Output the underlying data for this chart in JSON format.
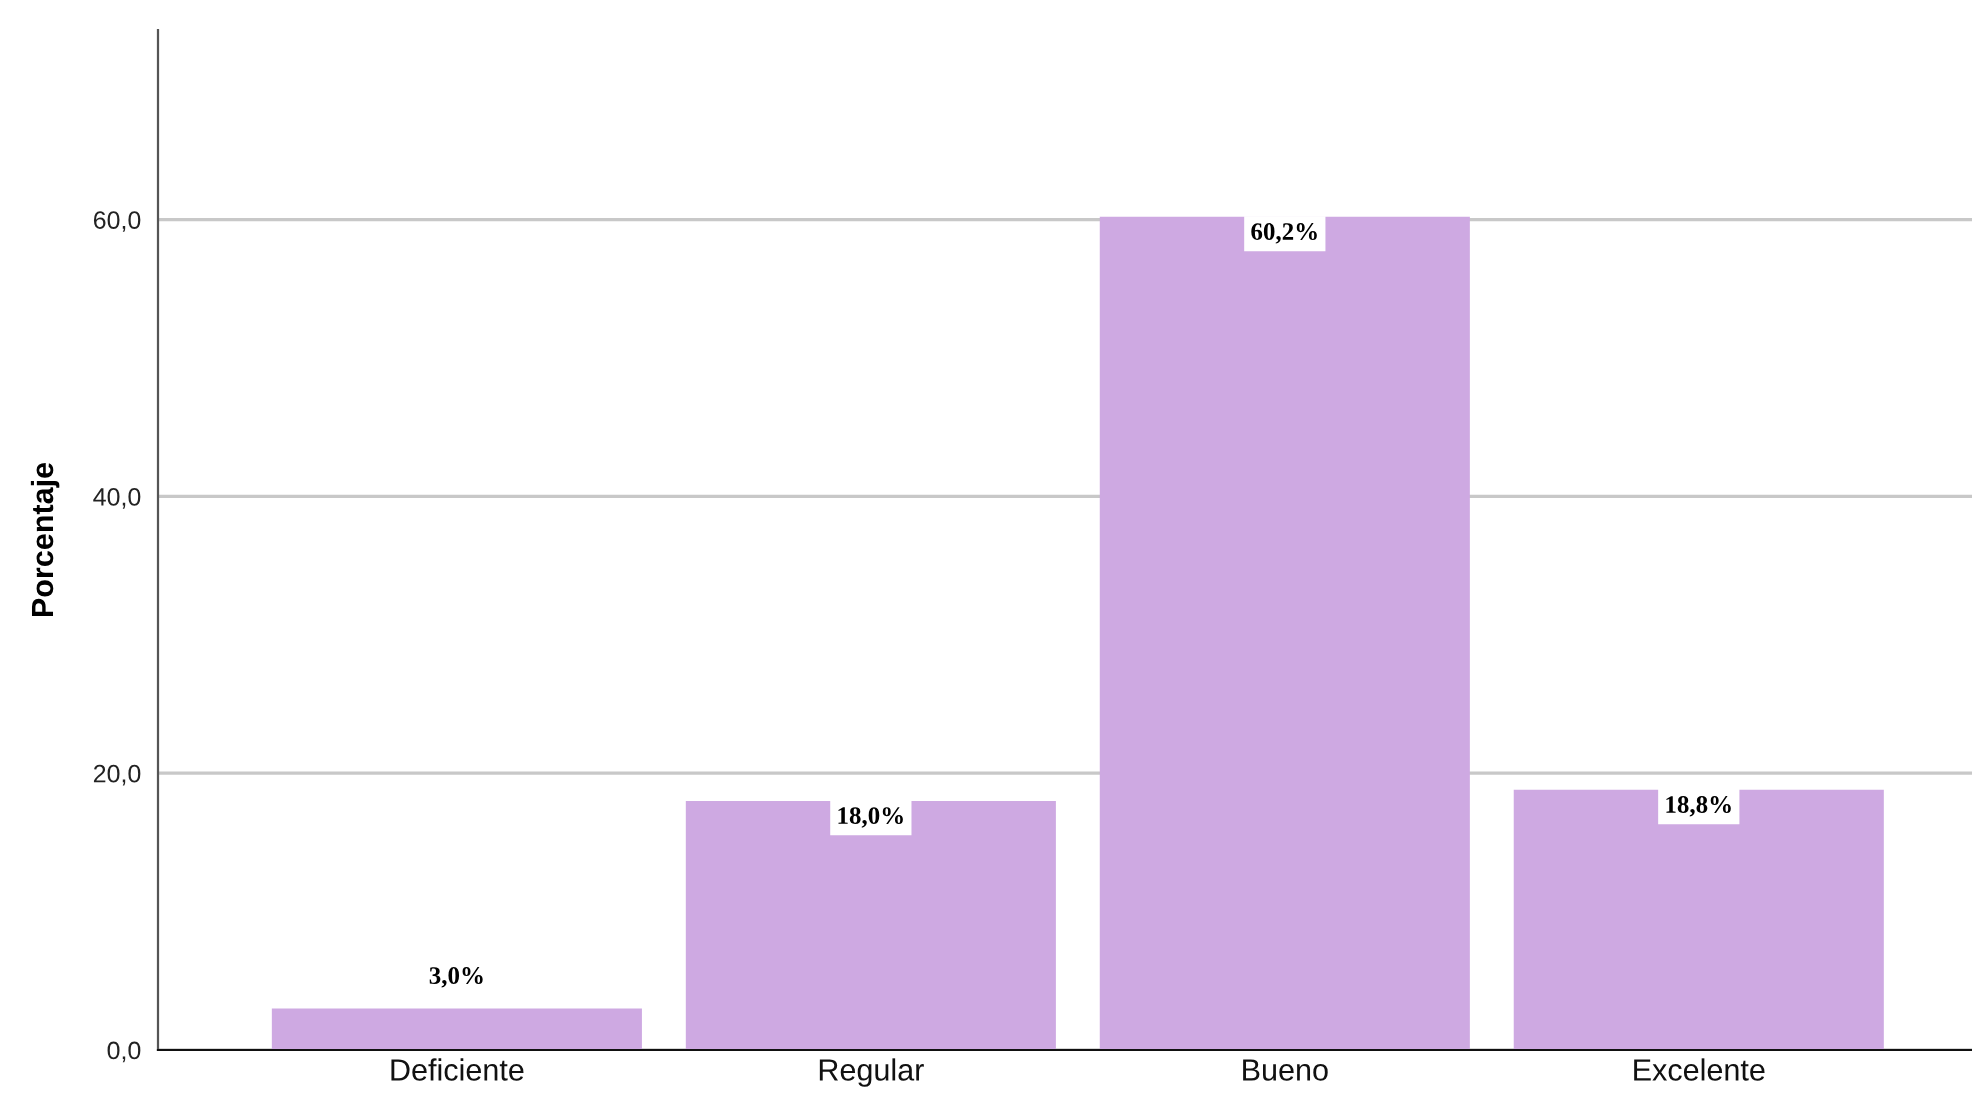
{
  "chart_data": {
    "type": "bar",
    "ylabel": "Porcentaje",
    "categories": [
      "Deficiente",
      "Regular",
      "Bueno",
      "Excelente"
    ],
    "values": [
      3.0,
      18.0,
      60.2,
      18.8
    ],
    "value_labels": [
      "3,0%",
      "18,0%",
      "60,2%",
      "18,8%"
    ],
    "color": "#cea9e2",
    "ylim": [
      0,
      73.7
    ],
    "yticks": [
      {
        "value": 0,
        "label": "0,0"
      },
      {
        "value": 20,
        "label": "20,0"
      },
      {
        "value": 40,
        "label": "40,0"
      },
      {
        "value": 60,
        "label": "60,0"
      }
    ],
    "grid": "y"
  }
}
